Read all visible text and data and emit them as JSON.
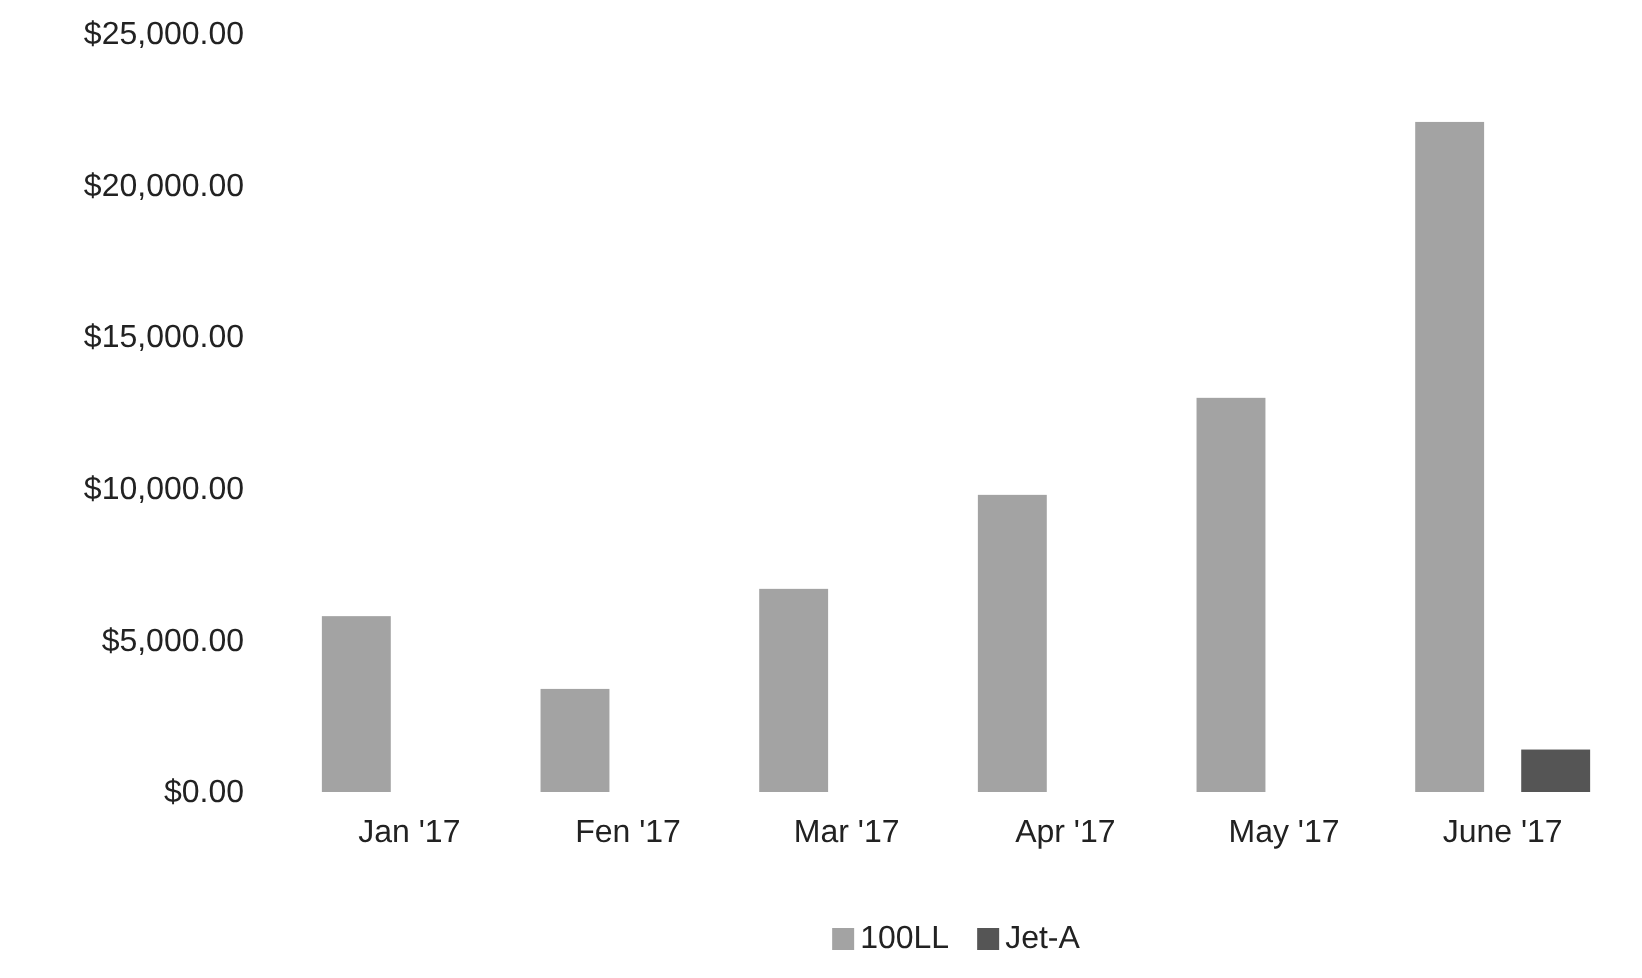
{
  "chart_data": {
    "type": "bar",
    "categories": [
      "Jan '17",
      "Fen '17",
      "Mar '17",
      "Apr '17",
      "May '17",
      "June '17"
    ],
    "series": [
      {
        "name": "100LL",
        "color": "#a3a3a3",
        "values": [
          5800,
          3400,
          6700,
          9800,
          13000,
          22100
        ]
      },
      {
        "name": "Jet-A",
        "color": "#555555",
        "values": [
          0,
          0,
          0,
          0,
          0,
          1400
        ]
      }
    ],
    "ylim": [
      0,
      25000
    ],
    "yticks": [
      {
        "value": 0,
        "label": "$0.00"
      },
      {
        "value": 5000,
        "label": "$5,000.00"
      },
      {
        "value": 10000,
        "label": "$10,000.00"
      },
      {
        "value": 15000,
        "label": "$15,000.00"
      },
      {
        "value": 20000,
        "label": "$20,000.00"
      },
      {
        "value": 25000,
        "label": "$25,000.00"
      }
    ],
    "legend": "bottom"
  }
}
